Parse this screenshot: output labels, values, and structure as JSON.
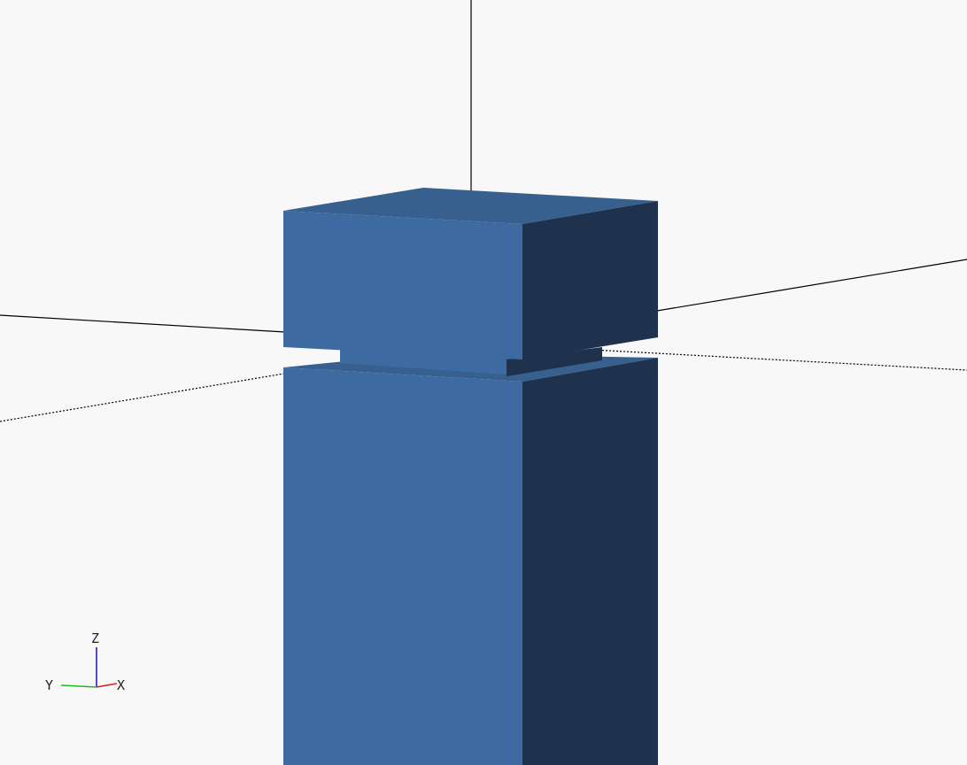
{
  "viewport": {
    "background_color": "#f8f8f8",
    "model": {
      "face_front_color": "#3e6aa2",
      "face_top_color": "#37608f",
      "face_side_color": "#1e324d"
    },
    "scene_axes_color": "#000000"
  },
  "axis_indicator": {
    "x_label": "X",
    "y_label": "Y",
    "z_label": "Z",
    "x_color": "#d32222",
    "y_color": "#22b822",
    "z_color": "#2222cc"
  }
}
